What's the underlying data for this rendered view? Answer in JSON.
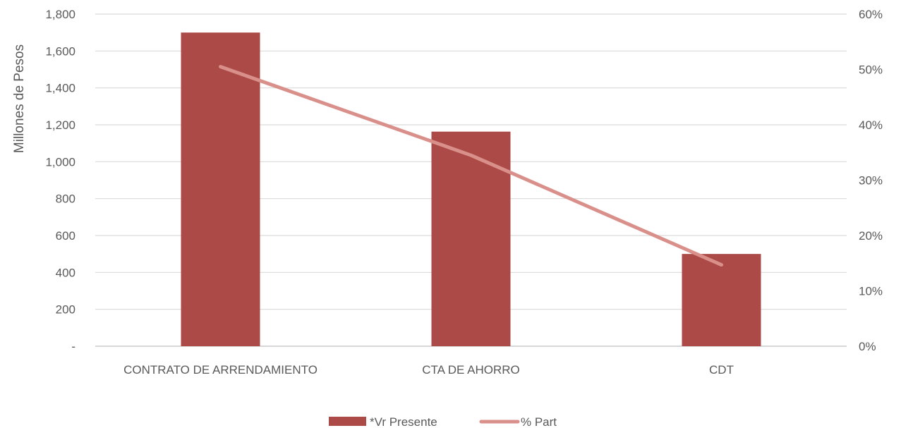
{
  "chart_data": {
    "type": "bar",
    "categories": [
      "CONTRATO DE ARRENDAMIENTO",
      "CTA DE AHORRO",
      "CDT"
    ],
    "series": [
      {
        "name": "*Vr Presente",
        "type": "bar",
        "axis": "left",
        "values": [
          1700,
          1163,
          500
        ],
        "color": "#ab4a46"
      },
      {
        "name": "% Part",
        "type": "line",
        "axis": "right",
        "values": [
          0.505,
          0.345,
          0.147
        ],
        "color": "#d98f8a"
      }
    ],
    "ylabel": "Millones de Pesos",
    "ylim": [
      0,
      1800
    ],
    "y_ticks": [
      "-",
      "200",
      "400",
      "600",
      "800",
      "1,000",
      "1,200",
      "1,400",
      "1,600",
      "1,800"
    ],
    "y2lim": [
      0,
      0.6
    ],
    "y2_ticks": [
      "0%",
      "10%",
      "20%",
      "30%",
      "40%",
      "50%",
      "60%"
    ],
    "grid": true,
    "legend_position": "bottom"
  }
}
